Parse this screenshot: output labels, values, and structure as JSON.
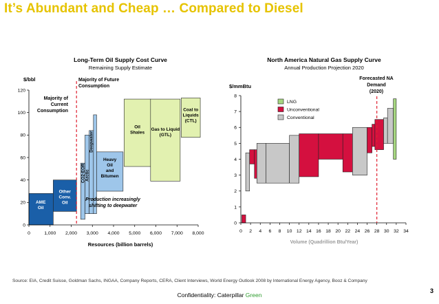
{
  "slide": {
    "title": "It’s Abundant and Cheap … Compared to Diesel",
    "source": "Source:   EIA, Credit Suisse, Goldman Sachs, INGAA, Company Reports, CERA, Client Interviews, World Energy Outlook 2008 by International Energy Agency, Booz & Company",
    "footer_prefix": "Confidentiality: Caterpillar ",
    "footer_green": "Green",
    "page_number": "3"
  },
  "colors": {
    "blue": "#1a5fa8",
    "light_blue": "#9ec6ea",
    "light_green": "#e2f1b0",
    "crimson": "#d4103f",
    "gray": "#c8c8c8",
    "lng_green": "#a6d680",
    "dashed_red": "#e02030"
  },
  "chart_data": [
    {
      "type": "bar",
      "title": "Long-Term Oil Supply Cost Curve",
      "subtitle": "Remaining Supply Estimate",
      "ylabel": "$/bbl",
      "xlabel": "Resources (billion barrels)",
      "xlim": [
        0,
        8000
      ],
      "ylim": [
        0,
        120
      ],
      "xticks": [
        0,
        1000,
        2000,
        3000,
        4000,
        5000,
        6000,
        7000,
        8000
      ],
      "xtick_labels": [
        "0",
        "1,000",
        "2,000",
        "3,000",
        "4,000",
        "5,000",
        "6,000",
        "7,000",
        "8,000"
      ],
      "yticks": [
        0,
        20,
        40,
        60,
        80,
        100,
        120
      ],
      "bars": [
        {
          "label": "AME Oil",
          "lines": [
            "AME",
            "Oil"
          ],
          "x0": 0,
          "x1": 1150,
          "y0": 0,
          "y1": 28,
          "color": "blue",
          "label_at": [
            560,
            18
          ],
          "text_color": "#ffffff"
        },
        {
          "label": "Other Conv. Oil",
          "lines": [
            "Other",
            "Conv.",
            "Oil"
          ],
          "x0": 1150,
          "x1": 2250,
          "y0": 12,
          "y1": 40,
          "color": "blue",
          "label_at": [
            1700,
            25
          ],
          "text_color": "#ffffff"
        },
        {
          "label": "CO2-EOR",
          "lines": [
            "CO2-EOR"
          ],
          "x0": 2450,
          "x1": 2650,
          "y0": 5,
          "y1": 55,
          "color": "light_blue",
          "vertical": true,
          "label_at": [
            2550,
            46
          ],
          "text_color": "#000000"
        },
        {
          "label": "Arctic",
          "lines": [
            "Arctic"
          ],
          "x0": 2650,
          "x1": 2850,
          "y0": 10,
          "y1": 80,
          "color": "light_blue",
          "vertical": true,
          "label_at": [
            2750,
            44
          ],
          "text_color": "#000000"
        },
        {
          "label": "Deepwater",
          "lines": [
            "Deepwater"
          ],
          "x0": 2850,
          "x1": 3050,
          "y0": 10,
          "y1": 84,
          "color": "light_blue",
          "vertical": true,
          "label_at": [
            2950,
            74
          ],
          "text_color": "#000000"
        },
        {
          "label": "",
          "lines": [],
          "x0": 3050,
          "x1": 3200,
          "y0": 10,
          "y1": 98,
          "color": "light_blue"
        },
        {
          "label": "Heavy Oil and Bitumen",
          "lines": [
            "Heavy",
            "Oil",
            "and",
            "Bitumen"
          ],
          "x0": 3200,
          "x1": 4450,
          "y0": 30,
          "y1": 65,
          "color": "light_blue",
          "label_at": [
            3825,
            51
          ],
          "text_color": "#000000"
        },
        {
          "label": "Oil Shales",
          "lines": [
            "Oil",
            "Shales"
          ],
          "x0": 4500,
          "x1": 5750,
          "y0": 52,
          "y1": 112,
          "color": "light_green",
          "label_at": [
            5125,
            85
          ],
          "text_color": "#000000"
        },
        {
          "label": "Gas to Liquid (GTL)",
          "lines": [
            "Gas to Liquid",
            "(GTL)"
          ],
          "x0": 5750,
          "x1": 7150,
          "y0": 39,
          "y1": 112,
          "color": "light_green",
          "label_at": [
            6450,
            83
          ],
          "text_color": "#000000"
        },
        {
          "label": "Coal to Liquids (CTL)",
          "lines": [
            "Coal to",
            "Liquids",
            "(CTL)"
          ],
          "x0": 7200,
          "x1": 8100,
          "y0": 78,
          "y1": 113,
          "color": "light_green",
          "label_at": [
            7650,
            98
          ],
          "text_color": "#000000"
        }
      ],
      "marker_x": 2250,
      "annotations": {
        "current": [
          "Majority of",
          "Current",
          "Consumption"
        ],
        "future": [
          "Majority of Future",
          "Consumption"
        ],
        "shift": [
          "Production increasingly",
          "shifting to deepwater"
        ]
      }
    },
    {
      "type": "bar",
      "title": "North America Natural Gas Supply Curve",
      "subtitle": "Annual Production Projection 2020",
      "ylabel": "$/mmBtu",
      "xlabel": "Volume (Quadrillion Btu/Year)",
      "xlim": [
        0,
        34
      ],
      "ylim": [
        0,
        8
      ],
      "xticks": [
        0,
        2,
        4,
        6,
        8,
        10,
        12,
        14,
        16,
        18,
        20,
        22,
        24,
        26,
        28,
        30,
        32,
        34
      ],
      "yticks": [
        0,
        1,
        2,
        3,
        4,
        5,
        6,
        7,
        8
      ],
      "legend": [
        {
          "label": "LNG",
          "color": "lng_green"
        },
        {
          "label": "Unconventional",
          "color": "crimson"
        },
        {
          "label": "Conventional",
          "color": "gray"
        }
      ],
      "bars": [
        {
          "x0": 0.2,
          "x1": 1.0,
          "y0": 0,
          "y1": 0.5,
          "color": "crimson"
        },
        {
          "x0": 1.0,
          "x1": 1.8,
          "y0": 2.0,
          "y1": 4.4,
          "color": "gray"
        },
        {
          "x0": 1.8,
          "x1": 2.8,
          "y0": 3.7,
          "y1": 4.6,
          "color": "crimson"
        },
        {
          "x0": 2.8,
          "x1": 3.3,
          "y0": 2.8,
          "y1": 4.6,
          "color": "crimson"
        },
        {
          "x0": 3.3,
          "x1": 5.2,
          "y0": 2.5,
          "y1": 5.0,
          "color": "gray"
        },
        {
          "x0": 5.2,
          "x1": 10.0,
          "y0": 2.5,
          "y1": 5.0,
          "color": "gray"
        },
        {
          "x0": 10.0,
          "x1": 12.0,
          "y0": 2.5,
          "y1": 5.5,
          "color": "gray"
        },
        {
          "x0": 12.0,
          "x1": 16.0,
          "y0": 2.9,
          "y1": 5.6,
          "color": "crimson"
        },
        {
          "x0": 16.0,
          "x1": 21.0,
          "y0": 4.0,
          "y1": 5.6,
          "color": "crimson"
        },
        {
          "x0": 21.0,
          "x1": 23.0,
          "y0": 3.2,
          "y1": 5.6,
          "color": "crimson"
        },
        {
          "x0": 23.0,
          "x1": 26.0,
          "y0": 3.0,
          "y1": 6.0,
          "color": "gray"
        },
        {
          "x0": 26.0,
          "x1": 27.0,
          "y0": 4.4,
          "y1": 6.0,
          "color": "crimson"
        },
        {
          "x0": 27.0,
          "x1": 27.6,
          "y0": 4.8,
          "y1": 6.2,
          "color": "crimson"
        },
        {
          "x0": 27.6,
          "x1": 29.4,
          "y0": 4.6,
          "y1": 6.5,
          "color": "crimson"
        },
        {
          "x0": 29.4,
          "x1": 30.2,
          "y0": 5.0,
          "y1": 6.6,
          "color": "gray"
        },
        {
          "x0": 30.2,
          "x1": 31.4,
          "y0": 5.0,
          "y1": 7.2,
          "color": "gray"
        },
        {
          "x0": 31.4,
          "x1": 32.0,
          "y0": 4.0,
          "y1": 7.8,
          "color": "lng_green"
        }
      ],
      "marker_x": 28,
      "marker_label": [
        "Forecasted NA",
        "Demand",
        "(2020)"
      ]
    }
  ]
}
